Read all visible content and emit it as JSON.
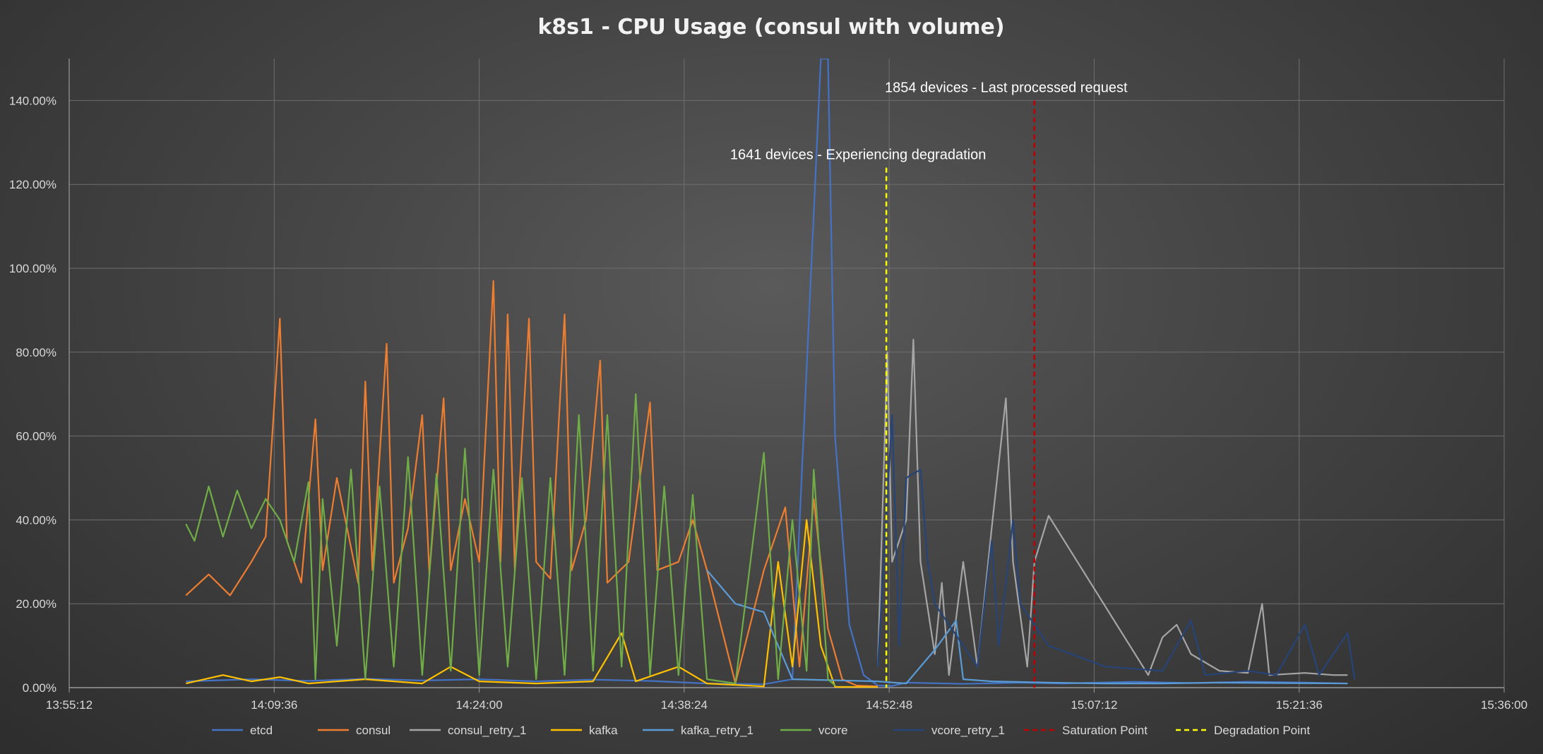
{
  "chart_data": {
    "type": "line",
    "title": "k8s1 - CPU Usage (consul with volume)",
    "xlabel": "",
    "ylabel": "",
    "x_axis": {
      "type": "time",
      "min": "13:55:12",
      "max": "15:36:00",
      "tick_labels": [
        "13:55:12",
        "14:09:36",
        "14:24:00",
        "14:38:24",
        "14:52:48",
        "15:07:12",
        "15:21:36",
        "15:36:00"
      ]
    },
    "y_axis": {
      "min": 0,
      "max": 150,
      "unit": "%",
      "tick_labels": [
        "0.00%",
        "20.00%",
        "40.00%",
        "60.00%",
        "80.00%",
        "100.00%",
        "120.00%",
        "140.00%"
      ]
    },
    "grid": true,
    "legend_position": "bottom",
    "series": [
      {
        "name": "etcd",
        "color": "#4472c4",
        "points": [
          [
            "14:03:24",
            1.5
          ],
          [
            "14:08:00",
            2.0
          ],
          [
            "14:12:00",
            1.6
          ],
          [
            "14:16:00",
            2.1
          ],
          [
            "14:20:00",
            1.7
          ],
          [
            "14:24:00",
            2.0
          ],
          [
            "14:28:00",
            1.5
          ],
          [
            "14:32:00",
            1.9
          ],
          [
            "14:36:00",
            1.6
          ],
          [
            "14:40:00",
            1.0
          ],
          [
            "14:44:00",
            0.8
          ],
          [
            "14:46:00",
            2.0
          ],
          [
            "14:48:00",
            150
          ],
          [
            "14:48:30",
            150
          ],
          [
            "14:49:00",
            60
          ],
          [
            "14:50:00",
            15
          ],
          [
            "14:51:00",
            3
          ],
          [
            "14:52:00",
            0.5
          ],
          [
            "14:53:00",
            0.4
          ],
          [
            "14:54:00",
            1.2
          ],
          [
            "14:58:00",
            0.9
          ],
          [
            "15:02:00",
            1.2
          ],
          [
            "15:05:00",
            1.0
          ],
          [
            "15:10:00",
            1.4
          ],
          [
            "15:14:00",
            1.1
          ],
          [
            "15:18:00",
            1.4
          ],
          [
            "15:22:00",
            1.2
          ],
          [
            "15:25:00",
            1.0
          ]
        ]
      },
      {
        "name": "consul",
        "color": "#ed7d31",
        "points": [
          [
            "14:03:24",
            22
          ],
          [
            "14:05:00",
            27
          ],
          [
            "14:06:30",
            22
          ],
          [
            "14:08:00",
            30
          ],
          [
            "14:09:00",
            36
          ],
          [
            "14:10:00",
            88
          ],
          [
            "14:10:30",
            35
          ],
          [
            "14:11:30",
            25
          ],
          [
            "14:12:30",
            64
          ],
          [
            "14:13:00",
            28
          ],
          [
            "14:14:00",
            50
          ],
          [
            "14:15:30",
            25
          ],
          [
            "14:16:00",
            73
          ],
          [
            "14:16:30",
            28
          ],
          [
            "14:17:30",
            82
          ],
          [
            "14:18:00",
            25
          ],
          [
            "14:19:00",
            38
          ],
          [
            "14:20:00",
            65
          ],
          [
            "14:20:30",
            27
          ],
          [
            "14:21:30",
            69
          ],
          [
            "14:22:00",
            28
          ],
          [
            "14:23:00",
            45
          ],
          [
            "14:24:00",
            30
          ],
          [
            "14:25:00",
            97
          ],
          [
            "14:25:30",
            30
          ],
          [
            "14:26:00",
            89
          ],
          [
            "14:26:30",
            28
          ],
          [
            "14:27:30",
            88
          ],
          [
            "14:28:00",
            30
          ],
          [
            "14:29:00",
            26
          ],
          [
            "14:30:00",
            89
          ],
          [
            "14:30:30",
            28
          ],
          [
            "14:31:30",
            40
          ],
          [
            "14:32:30",
            78
          ],
          [
            "14:33:00",
            25
          ],
          [
            "14:34:30",
            30
          ],
          [
            "14:36:00",
            68
          ],
          [
            "14:36:30",
            28
          ],
          [
            "14:38:00",
            30
          ],
          [
            "14:39:00",
            40
          ],
          [
            "14:40:00",
            28
          ],
          [
            "14:42:00",
            1.0
          ],
          [
            "14:44:00",
            28
          ],
          [
            "14:45:30",
            43
          ],
          [
            "14:46:30",
            5
          ],
          [
            "14:47:30",
            45
          ],
          [
            "14:48:30",
            14
          ],
          [
            "14:49:30",
            2
          ],
          [
            "14:50:30",
            0.5
          ],
          [
            "14:52:00",
            0.3
          ]
        ]
      },
      {
        "name": "consul_retry_1",
        "color": "#a5a5a5",
        "points": [
          [
            "14:52:00",
            5
          ],
          [
            "14:52:40",
            80
          ],
          [
            "14:53:00",
            30
          ],
          [
            "14:54:00",
            40
          ],
          [
            "14:54:30",
            83
          ],
          [
            "14:55:00",
            30
          ],
          [
            "14:56:00",
            8
          ],
          [
            "14:56:30",
            25
          ],
          [
            "14:57:00",
            3
          ],
          [
            "14:58:00",
            30
          ],
          [
            "14:59:00",
            5
          ],
          [
            "15:00:00",
            38
          ],
          [
            "15:01:00",
            69
          ],
          [
            "15:01:30",
            30
          ],
          [
            "15:02:30",
            5
          ],
          [
            "15:03:00",
            30
          ],
          [
            "15:04:00",
            41
          ],
          [
            "15:11:00",
            3
          ],
          [
            "15:12:00",
            12
          ],
          [
            "15:13:00",
            15
          ],
          [
            "15:14:00",
            8
          ],
          [
            "15:16:00",
            4
          ],
          [
            "15:18:00",
            3.5
          ],
          [
            "15:19:00",
            20
          ],
          [
            "15:19:30",
            3
          ],
          [
            "15:22:00",
            3.5
          ],
          [
            "15:24:00",
            3.0
          ],
          [
            "15:25:00",
            3.0
          ]
        ]
      },
      {
        "name": "kafka",
        "color": "#ffc000",
        "points": [
          [
            "14:03:24",
            1.0
          ],
          [
            "14:06:00",
            3.0
          ],
          [
            "14:08:00",
            1.5
          ],
          [
            "14:10:00",
            2.5
          ],
          [
            "14:12:00",
            1.0
          ],
          [
            "14:16:00",
            2.0
          ],
          [
            "14:20:00",
            1.0
          ],
          [
            "14:22:00",
            5.0
          ],
          [
            "14:24:00",
            1.5
          ],
          [
            "14:28:00",
            1.0
          ],
          [
            "14:32:00",
            1.5
          ],
          [
            "14:34:00",
            13
          ],
          [
            "14:35:00",
            1.5
          ],
          [
            "14:38:00",
            5.0
          ],
          [
            "14:40:00",
            1.0
          ],
          [
            "14:44:00",
            0.3
          ],
          [
            "14:45:00",
            30
          ],
          [
            "14:46:00",
            5
          ],
          [
            "14:47:00",
            40
          ],
          [
            "14:48:00",
            10
          ],
          [
            "14:49:00",
            0.2
          ],
          [
            "14:52:00",
            0.1
          ]
        ]
      },
      {
        "name": "kafka_retry_1",
        "color": "#5b9bd5",
        "points": [
          [
            "14:40:00",
            28
          ],
          [
            "14:42:00",
            20
          ],
          [
            "14:44:00",
            18
          ],
          [
            "14:45:00",
            10
          ],
          [
            "14:46:00",
            2
          ],
          [
            "14:52:00",
            1.5
          ],
          [
            "14:54:00",
            1.0
          ],
          [
            "14:56:00",
            9
          ],
          [
            "14:57:30",
            16
          ],
          [
            "14:58:00",
            2
          ],
          [
            "15:00:00",
            1.5
          ],
          [
            "15:04:00",
            1.2
          ],
          [
            "15:08:00",
            1.0
          ],
          [
            "15:12:00",
            1.0
          ],
          [
            "15:16:00",
            1.2
          ],
          [
            "15:20:00",
            1.1
          ],
          [
            "15:25:00",
            1.0
          ]
        ]
      },
      {
        "name": "vcore",
        "color": "#70ad47",
        "points": [
          [
            "14:03:24",
            39
          ],
          [
            "14:04:00",
            35
          ],
          [
            "14:05:00",
            48
          ],
          [
            "14:06:00",
            36
          ],
          [
            "14:07:00",
            47
          ],
          [
            "14:08:00",
            38
          ],
          [
            "14:09:00",
            45
          ],
          [
            "14:10:00",
            40
          ],
          [
            "14:11:00",
            30
          ],
          [
            "14:12:00",
            49
          ],
          [
            "14:12:30",
            2
          ],
          [
            "14:13:00",
            45
          ],
          [
            "14:14:00",
            10
          ],
          [
            "14:15:00",
            52
          ],
          [
            "14:16:00",
            2
          ],
          [
            "14:17:00",
            48
          ],
          [
            "14:18:00",
            5
          ],
          [
            "14:19:00",
            55
          ],
          [
            "14:20:00",
            3
          ],
          [
            "14:21:00",
            51
          ],
          [
            "14:22:00",
            4
          ],
          [
            "14:23:00",
            57
          ],
          [
            "14:24:00",
            3
          ],
          [
            "14:25:00",
            52
          ],
          [
            "14:26:00",
            5
          ],
          [
            "14:27:00",
            50
          ],
          [
            "14:28:00",
            2
          ],
          [
            "14:29:00",
            50
          ],
          [
            "14:30:00",
            3
          ],
          [
            "14:31:00",
            65
          ],
          [
            "14:32:00",
            4
          ],
          [
            "14:33:00",
            65
          ],
          [
            "14:34:00",
            5
          ],
          [
            "14:35:00",
            70
          ],
          [
            "14:36:00",
            3
          ],
          [
            "14:37:00",
            48
          ],
          [
            "14:38:00",
            3
          ],
          [
            "14:39:00",
            46
          ],
          [
            "14:40:00",
            2
          ],
          [
            "14:42:00",
            1
          ],
          [
            "14:44:00",
            56
          ],
          [
            "14:45:00",
            2
          ],
          [
            "14:46:00",
            40
          ],
          [
            "14:47:00",
            4
          ],
          [
            "14:47:30",
            52
          ],
          [
            "14:48:30",
            2
          ],
          [
            "14:49:00",
            0.5
          ]
        ]
      },
      {
        "name": "vcore_retry_1",
        "color": "#264478",
        "points": [
          [
            "14:52:00",
            5
          ],
          [
            "14:53:00",
            65
          ],
          [
            "14:53:30",
            10
          ],
          [
            "14:54:00",
            50
          ],
          [
            "14:55:00",
            52
          ],
          [
            "14:55:30",
            30
          ],
          [
            "14:56:00",
            20
          ],
          [
            "14:57:00",
            15
          ],
          [
            "14:58:00",
            10
          ],
          [
            "14:59:00",
            5
          ],
          [
            "15:00:00",
            35
          ],
          [
            "15:00:30",
            10
          ],
          [
            "15:01:30",
            40
          ],
          [
            "15:02:00",
            20
          ],
          [
            "15:03:00",
            15
          ],
          [
            "15:04:00",
            10
          ],
          [
            "15:08:00",
            5
          ],
          [
            "15:12:00",
            4
          ],
          [
            "15:14:00",
            16
          ],
          [
            "15:15:00",
            3
          ],
          [
            "15:18:00",
            4
          ],
          [
            "15:20:00",
            3
          ],
          [
            "15:22:00",
            15
          ],
          [
            "15:23:00",
            3
          ],
          [
            "15:25:00",
            13
          ],
          [
            "15:25:30",
            2
          ]
        ]
      }
    ],
    "reference_lines": [
      {
        "name": "Saturation Point",
        "color": "#c00000",
        "style": "dashed",
        "x": "15:03:00",
        "y_top": 140,
        "label": "1854 devices - Last processed request"
      },
      {
        "name": "Degradation Point",
        "color": "#ffff00",
        "style": "dashed",
        "x": "14:52:36",
        "y_top": 124,
        "label": "1641 devices - Experiencing degradation"
      }
    ],
    "legend": [
      {
        "name": "etcd",
        "color": "#4472c4",
        "dashed": false
      },
      {
        "name": "consul",
        "color": "#ed7d31",
        "dashed": false
      },
      {
        "name": "consul_retry_1",
        "color": "#a5a5a5",
        "dashed": false
      },
      {
        "name": "kafka",
        "color": "#ffc000",
        "dashed": false
      },
      {
        "name": "kafka_retry_1",
        "color": "#5b9bd5",
        "dashed": false
      },
      {
        "name": "vcore",
        "color": "#70ad47",
        "dashed": false
      },
      {
        "name": "vcore_retry_1",
        "color": "#264478",
        "dashed": false
      },
      {
        "name": "Saturation Point",
        "color": "#c00000",
        "dashed": true
      },
      {
        "name": "Degradation Point",
        "color": "#ffff00",
        "dashed": true
      }
    ]
  }
}
